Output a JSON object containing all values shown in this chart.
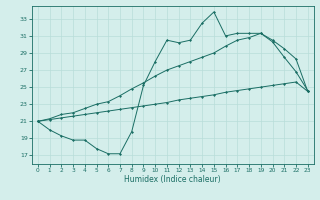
{
  "xlabel": "Humidex (Indice chaleur)",
  "bg_color": "#d4eeeb",
  "line_color": "#1a6e64",
  "grid_color": "#b8ddd9",
  "xlim": [
    -0.5,
    23.5
  ],
  "ylim": [
    16.0,
    34.5
  ],
  "yticks": [
    17,
    19,
    21,
    23,
    25,
    27,
    29,
    31,
    33
  ],
  "xticks": [
    0,
    1,
    2,
    3,
    4,
    5,
    6,
    7,
    8,
    9,
    10,
    11,
    12,
    13,
    14,
    15,
    16,
    17,
    18,
    19,
    20,
    21,
    22,
    23
  ],
  "series1_x": [
    0,
    1,
    2,
    3,
    4,
    5,
    6,
    7,
    8,
    9,
    10,
    11,
    12,
    13,
    14,
    15,
    16,
    17,
    18,
    19,
    20,
    21,
    22,
    23
  ],
  "series1_y": [
    21.0,
    20.0,
    19.3,
    18.8,
    18.8,
    17.8,
    17.2,
    17.2,
    19.8,
    25.2,
    28.0,
    30.5,
    30.2,
    30.5,
    32.5,
    33.8,
    31.0,
    31.3,
    31.3,
    31.3,
    30.3,
    28.5,
    26.8,
    24.6
  ],
  "series2_x": [
    0,
    1,
    2,
    3,
    4,
    5,
    6,
    7,
    8,
    9,
    10,
    11,
    12,
    13,
    14,
    15,
    16,
    17,
    18,
    19,
    20,
    21,
    22,
    23
  ],
  "series2_y": [
    21.0,
    21.3,
    21.8,
    22.0,
    22.5,
    23.0,
    23.3,
    24.0,
    24.8,
    25.5,
    26.3,
    27.0,
    27.5,
    28.0,
    28.5,
    29.0,
    29.8,
    30.5,
    30.8,
    31.3,
    30.5,
    29.5,
    28.3,
    24.5
  ],
  "series3_x": [
    0,
    1,
    2,
    3,
    4,
    5,
    6,
    7,
    8,
    9,
    10,
    11,
    12,
    13,
    14,
    15,
    16,
    17,
    18,
    19,
    20,
    21,
    22,
    23
  ],
  "series3_y": [
    21.0,
    21.2,
    21.4,
    21.6,
    21.8,
    22.0,
    22.2,
    22.4,
    22.6,
    22.8,
    23.0,
    23.2,
    23.5,
    23.7,
    23.9,
    24.1,
    24.4,
    24.6,
    24.8,
    25.0,
    25.2,
    25.4,
    25.6,
    24.5
  ]
}
